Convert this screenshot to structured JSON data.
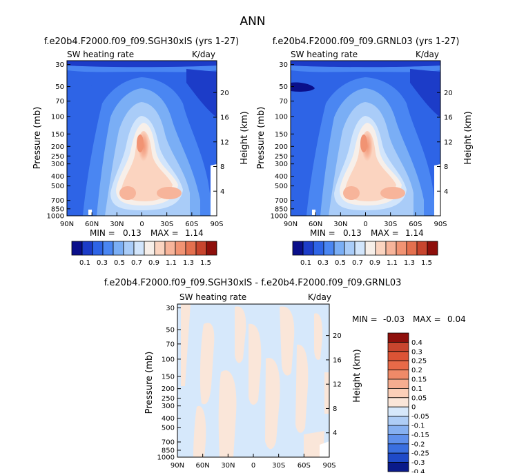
{
  "figure": {
    "title": "ANN"
  },
  "chart_data": [
    {
      "type": "heatmap",
      "title": "f.e20b4.F2000.f09_f09.SGH30xlS (yrs 1-27)",
      "variable": "SW heating rate",
      "units": "K/day",
      "ylabel": "Pressure (mb)",
      "ylabel_right": "Height (km)",
      "x_ticks": [
        "90N",
        "60N",
        "30N",
        "0",
        "30S",
        "60S",
        "90S"
      ],
      "y_ticks": [
        "30",
        "50",
        "70",
        "100",
        "150",
        "200",
        "250",
        "300",
        "400",
        "500",
        "700",
        "850",
        "1000"
      ],
      "height_ticks": [
        "20",
        "16",
        "12",
        "8",
        "4"
      ],
      "min_label": "MIN =",
      "min": "0.13",
      "max_label": "MAX =",
      "max": "1.14",
      "levels": [
        "0.1",
        "0.3",
        "0.5",
        "0.7",
        "0.9",
        "1.1",
        "1.3",
        "1.5"
      ]
    },
    {
      "type": "heatmap",
      "title": "f.e20b4.F2000.f09_f09.GRNL03 (yrs 1-27)",
      "variable": "SW heating rate",
      "units": "K/day",
      "ylabel": "Pressure (mb)",
      "ylabel_right": "Height (km)",
      "x_ticks": [
        "90N",
        "60N",
        "30N",
        "0",
        "30S",
        "60S",
        "90S"
      ],
      "y_ticks": [
        "30",
        "50",
        "70",
        "100",
        "150",
        "200",
        "250",
        "300",
        "400",
        "500",
        "700",
        "850",
        "1000"
      ],
      "height_ticks": [
        "20",
        "16",
        "12",
        "8",
        "4"
      ],
      "min_label": "MIN =",
      "min": "0.13",
      "max_label": "MAX =",
      "max": "1.14",
      "levels": [
        "0.1",
        "0.3",
        "0.5",
        "0.7",
        "0.9",
        "1.1",
        "1.3",
        "1.5"
      ]
    },
    {
      "type": "heatmap",
      "title": "f.e20b4.F2000.f09_f09.SGH30xlS - f.e20b4.F2000.f09_f09.GRNL03",
      "variable": "SW heating rate",
      "units": "K/day",
      "ylabel": "Pressure (mb)",
      "ylabel_right": "Height (km)",
      "x_ticks": [
        "90N",
        "60N",
        "30N",
        "0",
        "30S",
        "60S",
        "90S"
      ],
      "y_ticks": [
        "30",
        "50",
        "70",
        "100",
        "150",
        "200",
        "250",
        "300",
        "400",
        "500",
        "700",
        "850",
        "1000"
      ],
      "height_ticks": [
        "20",
        "16",
        "12",
        "8",
        "4"
      ],
      "min_label": "MIN =",
      "min": "-0.03",
      "max_label": "MAX =",
      "max": "0.04",
      "levels": [
        "0.4",
        "0.3",
        "0.25",
        "0.2",
        "0.15",
        "0.1",
        "0.05",
        "0",
        "-0.05",
        "-0.1",
        "-0.15",
        "-0.2",
        "-0.25",
        "-0.3",
        "-0.4"
      ]
    }
  ],
  "colors": {
    "main_scale": [
      "#0a0f8a",
      "#1c3cc8",
      "#2e64e6",
      "#4a86f2",
      "#7aaef5",
      "#a9ccf8",
      "#d2e5fb",
      "#f7efe9",
      "#fbd4c0",
      "#f7b49a",
      "#f19373",
      "#e4704f",
      "#c8452e",
      "#8e0f0b"
    ],
    "diff_scale": [
      "#8e0f0b",
      "#c8452e",
      "#dc5335",
      "#e86a48",
      "#ef8a68",
      "#f5ad90",
      "#fbcfb8",
      "#fae6d9",
      "#d6e8fb",
      "#aecdf6",
      "#86b0f1",
      "#5f90ec",
      "#3a6fe0",
      "#1f4ac8",
      "#0a1a8a"
    ]
  }
}
